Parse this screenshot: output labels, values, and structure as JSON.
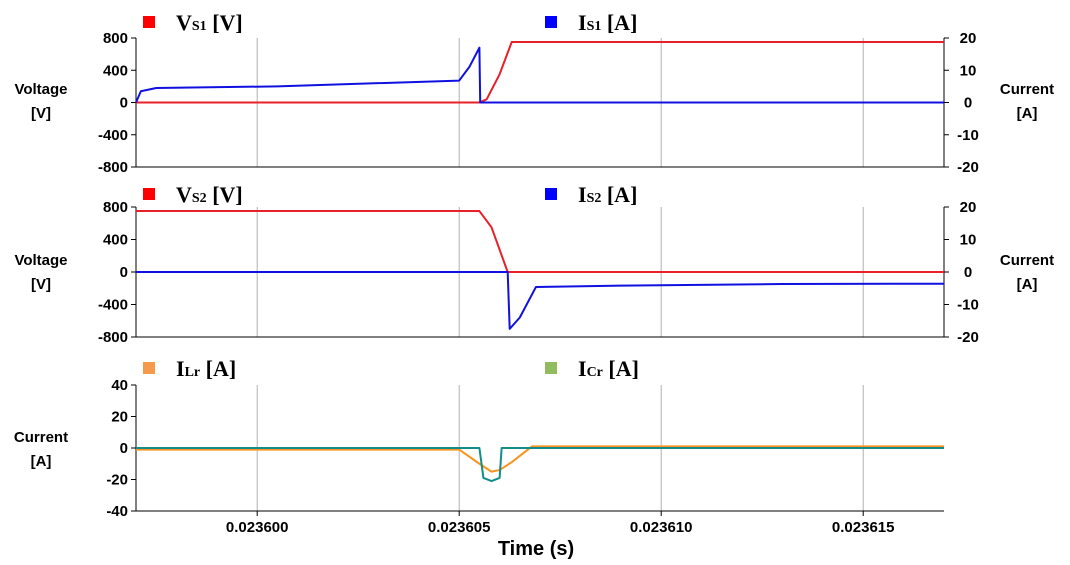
{
  "chart_data": [
    {
      "type": "line",
      "legend": [
        {
          "main": "V",
          "sub": "S1",
          "unit": " [V]",
          "color": "#ff0000"
        },
        {
          "main": "I",
          "sub": "S1",
          "unit": " [A]",
          "color": "#0000ff"
        }
      ],
      "ylabel_left": [
        "Voltage",
        "[V]"
      ],
      "ylabel_right": [
        "Current",
        "[A]"
      ],
      "yticks_left": [
        "800",
        "400",
        "0",
        "-400",
        "-800"
      ],
      "yticks_right": [
        "20",
        "10",
        "0",
        "-10",
        "-20"
      ],
      "ylim_left": [
        -800,
        800
      ],
      "ylim_right": [
        -20,
        20
      ],
      "xlim": [
        0.023597,
        0.023617
      ],
      "series": [
        {
          "axis": "left",
          "color": "#e8202a",
          "x": [
            0.023597,
            0.0236055,
            0.02360568,
            0.023606,
            0.0236063,
            0.023617
          ],
          "y": [
            0,
            0,
            40,
            350,
            750,
            750
          ]
        },
        {
          "axis": "right",
          "color": "#1010e0",
          "x": [
            0.023597,
            0.02359712,
            0.0235975,
            0.0236005,
            0.023605,
            0.02360525,
            0.0236055,
            0.02360552,
            0.023606,
            0.023617
          ],
          "y": [
            0,
            3.5,
            4.5,
            5.0,
            6.8,
            11.0,
            17.0,
            0,
            0,
            0
          ]
        }
      ]
    },
    {
      "type": "line",
      "legend": [
        {
          "main": "V",
          "sub": "S2",
          "unit": " [V]",
          "color": "#ff0000"
        },
        {
          "main": "I",
          "sub": "S2",
          "unit": " [A]",
          "color": "#0000ff"
        }
      ],
      "ylabel_left": [
        "Voltage",
        "[V]"
      ],
      "ylabel_right": [
        "Current",
        "[A]"
      ],
      "yticks_left": [
        "800",
        "400",
        "0",
        "-400",
        "-800"
      ],
      "yticks_right": [
        "20",
        "10",
        "0",
        "-10",
        "-20"
      ],
      "ylim_left": [
        -800,
        800
      ],
      "ylim_right": [
        -20,
        20
      ],
      "xlim": [
        0.023597,
        0.023617
      ],
      "series": [
        {
          "axis": "left",
          "color": "#e8202a",
          "x": [
            0.023597,
            0.0236055,
            0.0236058,
            0.0236062,
            0.023617
          ],
          "y": [
            750,
            750,
            550,
            0,
            0
          ]
        },
        {
          "axis": "right",
          "color": "#1010e0",
          "x": [
            0.023597,
            0.0236062,
            0.02360625,
            0.0236065,
            0.0236069,
            0.023609,
            0.023613,
            0.023617
          ],
          "y": [
            0,
            0,
            -17.5,
            -14,
            -4.6,
            -4.2,
            -3.7,
            -3.6
          ]
        }
      ]
    },
    {
      "type": "line",
      "legend": [
        {
          "main": "I",
          "sub": "Lr",
          "unit": " [A]",
          "color": "#f59a4a"
        },
        {
          "main": "I",
          "sub": "Cr",
          "unit": " [A]",
          "color": "#92bb5e"
        }
      ],
      "ylabel_left": [
        "Current",
        "[A]"
      ],
      "yticks_left": [
        "40",
        "20",
        "0",
        "-20",
        "-40"
      ],
      "ylim_left": [
        -40,
        40
      ],
      "xlim": [
        0.023597,
        0.023617
      ],
      "xticks": [
        "0.023600",
        "0.023605",
        "0.023610",
        "0.023615"
      ],
      "xlabel": "Time (s)",
      "series": [
        {
          "axis": "left",
          "color": "#f7931e",
          "x": [
            0.023597,
            0.023605,
            0.0236055,
            0.0236058,
            0.023606,
            0.0236063,
            0.0236068,
            0.023617
          ],
          "y": [
            -1,
            -1,
            -10,
            -15,
            -14,
            -9,
            1,
            1
          ]
        },
        {
          "axis": "left",
          "color": "#138c8c",
          "x": [
            0.023597,
            0.0236055,
            0.0236056,
            0.0236058,
            0.023606,
            0.02360605,
            0.0236061,
            0.023617
          ],
          "y": [
            0,
            0,
            -19,
            -21,
            -19,
            0,
            0,
            0
          ]
        }
      ]
    }
  ]
}
